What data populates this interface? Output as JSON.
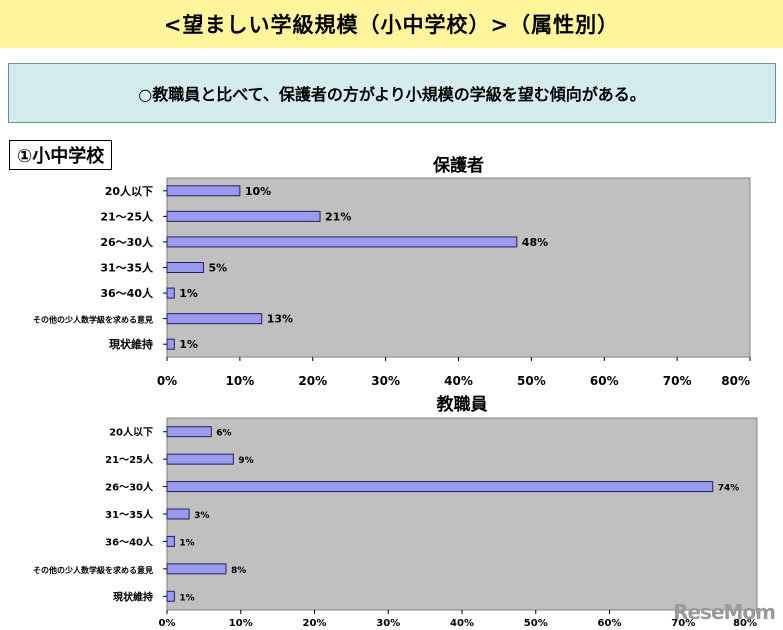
{
  "banner": {
    "title": "<望ましい学級規模（小中学校）>（属性別）"
  },
  "summary": {
    "text": "○教職員と比べて、保護者の方がより小規模の学級を望む傾向がある。"
  },
  "section": {
    "label": "①小中学校"
  },
  "watermark": {
    "text": "ReseMom"
  },
  "colors": {
    "bar": "#9a9af0",
    "bar_stroke": "#202060",
    "plot_bg": "#c0c0c0",
    "banner_bg": "#fff59a",
    "summary_bg": "#d4ecee"
  },
  "chart_data": [
    {
      "type": "bar",
      "orientation": "horizontal",
      "title": "保護者",
      "categories": [
        "20人以下",
        "21～25人",
        "26～30人",
        "31～35人",
        "36～40人",
        "その他の少人数学級を求める意見",
        "現状維持"
      ],
      "values": [
        10,
        21,
        48,
        5,
        1,
        13,
        1
      ],
      "value_labels": [
        "10%",
        "21%",
        "48%",
        "5%",
        "1%",
        "13%",
        "1%"
      ],
      "xlim": [
        0,
        80
      ],
      "xticks": [
        "0%",
        "10%",
        "20%",
        "30%",
        "40%",
        "50%",
        "60%",
        "70%",
        "80%"
      ],
      "grid": false
    },
    {
      "type": "bar",
      "orientation": "horizontal",
      "title": "教職員",
      "categories": [
        "20人以下",
        "21～25人",
        "26～30人",
        "31～35人",
        "36～40人",
        "その他の少人数学級を求める意見",
        "現状維持"
      ],
      "values": [
        6,
        9,
        74,
        3,
        1,
        8,
        1
      ],
      "value_labels": [
        "6%",
        "9%",
        "74%",
        "3%",
        "1%",
        "8%",
        "1%"
      ],
      "xlim": [
        0,
        80
      ],
      "xticks": [
        "0%",
        "10%",
        "20%",
        "30%",
        "40%",
        "50%",
        "60%",
        "70%",
        "80%"
      ],
      "grid": false
    }
  ]
}
